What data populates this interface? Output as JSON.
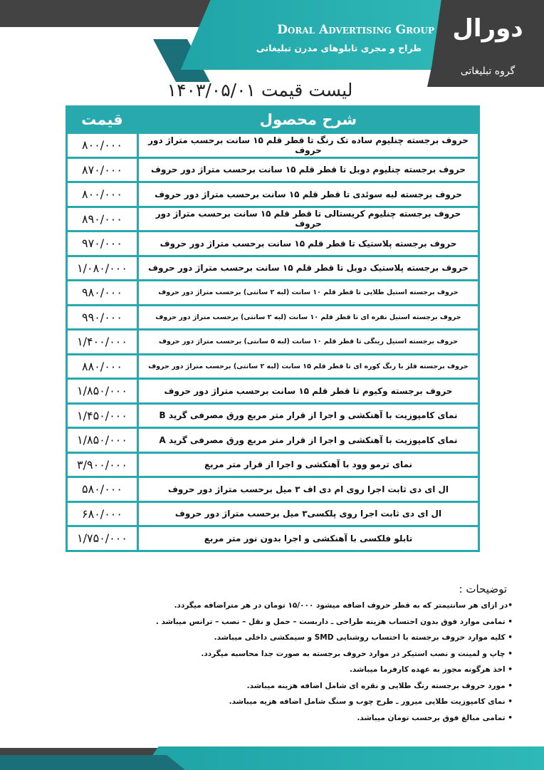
{
  "header": {
    "brand": "Doral Advertising Group",
    "tagline": "طراح و مجری تابلوهای مدرن تبلیغاتی",
    "logo_text": "دورال",
    "logo_subtext": "گروه تبلیغاتی"
  },
  "title": "لیست قیمت ۱۴۰۳/۰۵/۰۱",
  "table": {
    "headers": {
      "description": "شرح محصول",
      "price": "قیمت"
    },
    "rows": [
      {
        "desc": "حروف برجسته چنلیوم ساده تک رنگ تا قطر قلم ۱۵ سانت برحسب متراژ دور حروف",
        "price": "۸۰۰/۰۰۰"
      },
      {
        "desc": "حروف برجسته چنلیوم دوبل  تا قطر قلم ۱۵ سانت برحسب متراژ دور حروف",
        "price": "۸۷۰/۰۰۰"
      },
      {
        "desc": "حروف برجسته لبه سوئدی  تا قطر قلم ۱۵ سانت برحسب متراژ دور حروف",
        "price": "۸۰۰/۰۰۰"
      },
      {
        "desc": "حروف برجسته چنلیوم کریستالی تا قطر قلم ۱۵ سانت برحسب متراژ دور حروف",
        "price": "۸۹۰/۰۰۰"
      },
      {
        "desc": "حروف برجسته پلاستیک تا قطر قلم ۱۵ سانت برحسب متراژ دور حروف",
        "price": "۹۷۰/۰۰۰"
      },
      {
        "desc": "حروف برجسته پلاستیک دوبل تا قطر قلم ۱۵ سانت برحسب متراژ دور حروف",
        "price": "۱/۰۸۰/۰۰۰"
      },
      {
        "desc": "حروف برجسته استیل طلایی تا قطر قلم ۱۰ سانت (لبه ۲ سانتی) برحسب متراژ دور حروف",
        "price": "۹۸۰/۰۰۰"
      },
      {
        "desc": "حروف برجسته استیل نقره ای تا قطر قلم ۱۰ سانت (لبه ۲ سانتی) برحسب متراژ دور حروف",
        "price": "۹۹۰/۰۰۰"
      },
      {
        "desc": "حروف برجسته استیل رینگی تا قطر قلم ۱۰ سانت (لبه ۵ سانتی) برحسب متراژ دور حروف",
        "price": "۱/۴۰۰/۰۰۰"
      },
      {
        "desc": "حروف برجسته فلز با رنگ کوره ای تا قطر قلم ۱۵ سانت (لبه ۲ سانتی) برحسب متراژ دور حروف",
        "price": "۸۸۰/۰۰۰"
      },
      {
        "desc": "حروف برجسته وکیوم تا قطر قلم ۱۵ سانت  برحسب متراژ دور حروف",
        "price": "۱/۸۵۰/۰۰۰"
      },
      {
        "desc": "نمای کامپوزیت با آهنکشی و اجرا از قرار متر مربع ورق مصرفی گرید B",
        "price": "۱/۴۵۰/۰۰۰"
      },
      {
        "desc": "نمای کامپوزیت با آهنکشی و اجرا از قرار متر مربع ورق مصرفی گرید A",
        "price": "۱/۸۵۰/۰۰۰"
      },
      {
        "desc": "نمای ترمو وود با آهنکشی و اجرا از قرار متر مربع",
        "price": "۳/۹۰۰/۰۰۰"
      },
      {
        "desc": "ال ای دی ثابت اجرا روی ام دی اف ۳ میل برحسب متراژ دور حروف",
        "price": "۵۸۰/۰۰۰"
      },
      {
        "desc": "ال ای دی ثابت اجرا روی پلکسی۳ میل برحسب متراژ دور حروف",
        "price": "۶۸۰/۰۰۰"
      },
      {
        "desc": "تابلو فلکسی با آهنکشی و اجرا بدون نور متر مربع",
        "price": "۱/۷۵۰/۰۰۰"
      }
    ]
  },
  "notes": {
    "title": "توضیحات :",
    "items": [
      "•در ازای هر سانتیمتر که به قطر حروف اضافه میشود  ۱۵/۰۰۰ تومان در هر متراضافه میگردد.",
      "• تمامی موارد فوق  بدون احتساب هزینه طراحی ـ داربست – حمل و نقل – نصب – ترانس میباشد .",
      "• کلیه موارد حروف برجسته با احتساب روشنایی SMD و سیمکشی داخلی میباشد.",
      "• چاپ و لمینت و نصب استیکر در موارد حروف برجسته به صورت جدا محاسبه میگردد.",
      "• اخذ هرگونه مجوز به عهده کارفرما میباشد.",
      "• مورد حروف برجسته رنگ طلایی و نقره ای شامل اضافه هزینه میباشد.",
      "• نمای کامپوزیت طلایی میرور ـ طرح چوب و سنگ شامل اضافه هزیه میباشد.",
      "• تمامی مبالغ فوق برحسب تومان میباشد."
    ]
  },
  "colors": {
    "accent": "#27a9ad",
    "dark": "#434343"
  }
}
